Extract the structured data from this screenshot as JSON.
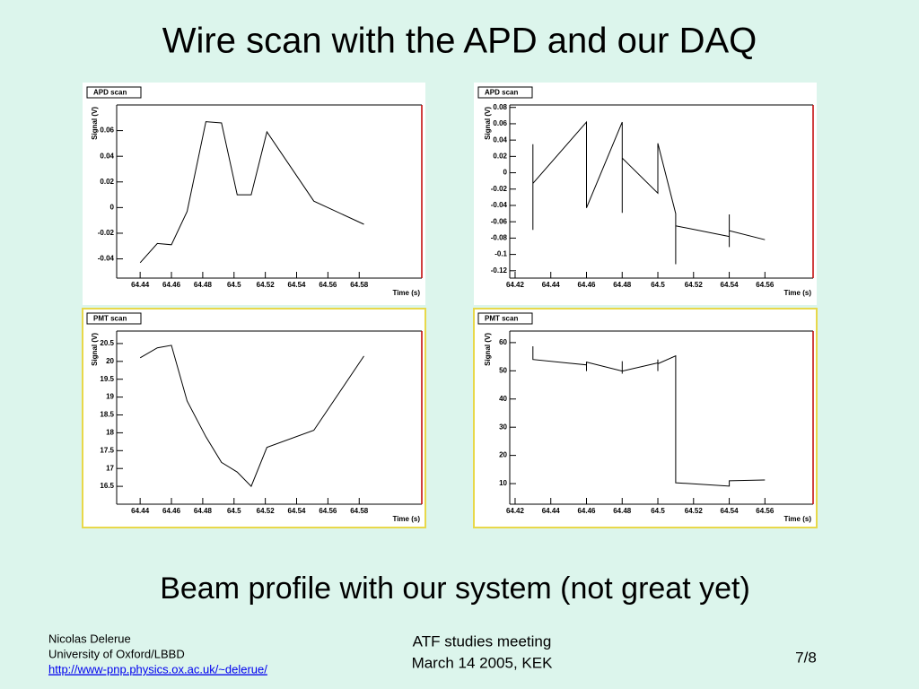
{
  "title": "Wire scan with the APD and our DAQ",
  "subtitle": "Beam profile with our system (not great yet)",
  "footer": {
    "author": "Nicolas Delerue",
    "affiliation": "University of Oxford/LBBD",
    "link": "http://www-pnp.physics.ox.ac.uk/~delerue/",
    "meeting": "ATF studies meeting",
    "date": "March 14 2005, KEK",
    "page": "7/8"
  },
  "chart_data": [
    {
      "type": "line",
      "title": "APD scan",
      "xlabel": "Time (s)",
      "ylabel": "Signal (V)",
      "color": "#000000",
      "x": [
        64.44,
        64.451,
        64.46,
        64.47,
        64.482,
        64.492,
        64.502,
        64.511,
        64.521,
        64.551,
        64.583
      ],
      "values": [
        -0.043,
        -0.028,
        -0.029,
        -0.003,
        0.067,
        0.066,
        0.01,
        0.01,
        0.059,
        0.005,
        -0.013
      ],
      "xlim": [
        64.425,
        64.62
      ],
      "ylim": [
        -0.055,
        0.08
      ],
      "xticks": [
        64.44,
        64.46,
        64.48,
        64.5,
        64.52,
        64.54,
        64.56,
        64.58
      ],
      "yticks": [
        -0.04,
        -0.02,
        0,
        0.02,
        0.04,
        0.06
      ]
    },
    {
      "type": "line",
      "title": "APD scan",
      "xlabel": "Time (s)",
      "ylabel": "Signal (V)",
      "color": "#000000",
      "x": [
        64.43,
        64.43,
        64.43,
        64.46,
        64.46,
        64.48,
        64.48,
        64.48,
        64.5,
        64.5,
        64.51,
        64.51,
        64.51,
        64.54,
        64.54,
        64.54,
        64.54,
        64.56
      ],
      "values": [
        -0.07,
        0.035,
        -0.013,
        0.062,
        -0.043,
        0.062,
        -0.049,
        0.018,
        -0.025,
        0.036,
        -0.05,
        -0.112,
        -0.065,
        -0.078,
        -0.051,
        -0.091,
        -0.071,
        -0.082
      ],
      "xlim": [
        64.417,
        64.587
      ],
      "ylim": [
        -0.129,
        0.083
      ],
      "xticks": [
        64.42,
        64.44,
        64.46,
        64.48,
        64.5,
        64.52,
        64.54,
        64.56
      ],
      "yticks": [
        -0.12,
        -0.1,
        -0.08,
        -0.06,
        -0.04,
        -0.02,
        0,
        0.02,
        0.04,
        0.06,
        0.08
      ]
    },
    {
      "type": "line",
      "title": "PMT scan",
      "xlabel": "Time (s)",
      "ylabel": "Signal (V)",
      "color": "#000000",
      "x": [
        64.44,
        64.451,
        64.46,
        64.47,
        64.482,
        64.492,
        64.502,
        64.511,
        64.521,
        64.551,
        64.583
      ],
      "values": [
        20.1,
        20.38,
        20.45,
        18.89,
        17.89,
        17.17,
        16.9,
        16.5,
        17.59,
        18.07,
        20.15
      ],
      "xlim": [
        64.425,
        64.62
      ],
      "ylim": [
        16.0,
        20.85
      ],
      "xticks": [
        64.44,
        64.46,
        64.48,
        64.5,
        64.52,
        64.54,
        64.56,
        64.58
      ],
      "yticks": [
        16.5,
        17,
        17.5,
        18,
        18.5,
        19,
        19.5,
        20,
        20.5
      ]
    },
    {
      "type": "line",
      "title": "PMT scan",
      "xlabel": "Time (s)",
      "ylabel": "Signal (V)",
      "color": "#000000",
      "x": [
        64.43,
        64.43,
        64.46,
        64.46,
        64.46,
        64.48,
        64.48,
        64.48,
        64.48,
        64.5,
        64.5,
        64.5,
        64.5,
        64.51,
        64.51,
        64.54,
        64.54,
        64.56
      ],
      "values": [
        58.7,
        54.0,
        52.1,
        49.9,
        53.1,
        49.9,
        53.4,
        49.0,
        49.9,
        52.8,
        49.9,
        54.0,
        52.5,
        55.3,
        10.3,
        9.1,
        11.0,
        11.3
      ],
      "xlim": [
        64.417,
        64.587
      ],
      "ylim": [
        2.7,
        64.1
      ],
      "xticks": [
        64.42,
        64.44,
        64.46,
        64.48,
        64.5,
        64.52,
        64.54,
        64.56
      ],
      "yticks": [
        10,
        20,
        30,
        40,
        50,
        60
      ]
    }
  ]
}
